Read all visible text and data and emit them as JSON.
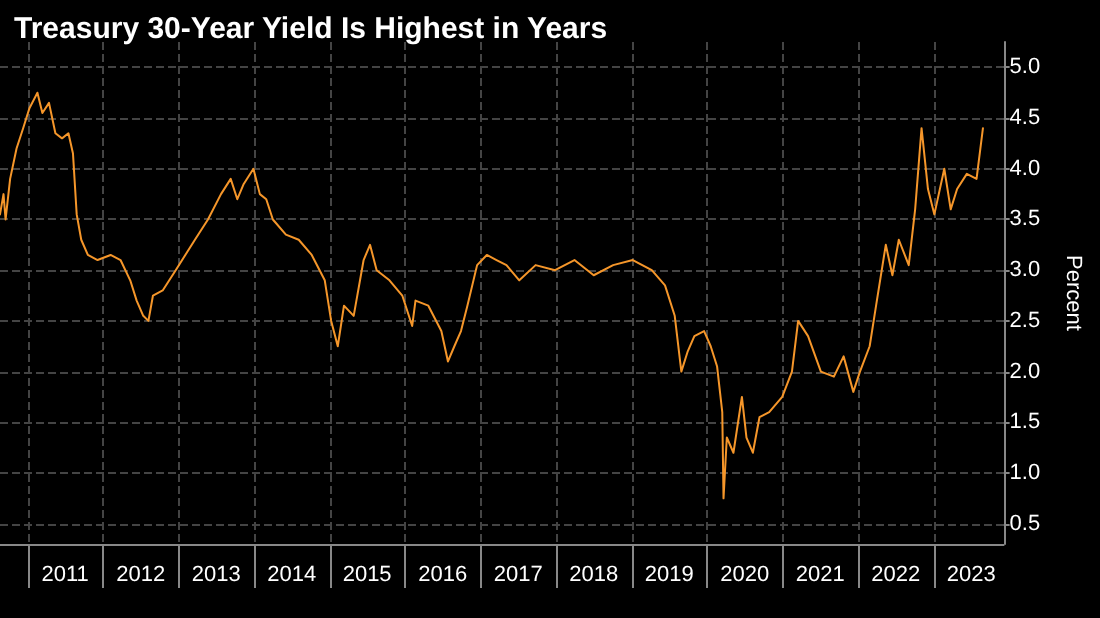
{
  "chart_data": {
    "type": "line",
    "title": "Treasury 30-Year Yield Is Highest in Years",
    "ylabel": "Percent",
    "xlim": [
      "2010-08-20",
      "2023-12-05"
    ],
    "ylim": [
      0.3,
      5.25
    ],
    "xticks": [
      {
        "value": "2011-01-01",
        "label": null
      },
      {
        "value": "2011-07-01",
        "label": "2011"
      },
      {
        "value": "2012-01-01",
        "label": null
      },
      {
        "value": "2012-07-01",
        "label": "2012"
      },
      {
        "value": "2013-01-01",
        "label": null
      },
      {
        "value": "2013-07-01",
        "label": "2013"
      },
      {
        "value": "2014-01-01",
        "label": null
      },
      {
        "value": "2014-07-01",
        "label": "2014"
      },
      {
        "value": "2015-01-01",
        "label": null
      },
      {
        "value": "2015-07-01",
        "label": "2015"
      },
      {
        "value": "2016-01-01",
        "label": null
      },
      {
        "value": "2016-07-01",
        "label": "2016"
      },
      {
        "value": "2017-01-01",
        "label": null
      },
      {
        "value": "2017-07-01",
        "label": "2017"
      },
      {
        "value": "2018-01-01",
        "label": null
      },
      {
        "value": "2018-07-01",
        "label": "2018"
      },
      {
        "value": "2019-01-01",
        "label": null
      },
      {
        "value": "2019-07-01",
        "label": "2019"
      },
      {
        "value": "2020-01-01",
        "label": null
      },
      {
        "value": "2020-07-01",
        "label": "2020"
      },
      {
        "value": "2021-01-01",
        "label": null
      },
      {
        "value": "2021-07-01",
        "label": "2021"
      },
      {
        "value": "2022-01-01",
        "label": null
      },
      {
        "value": "2022-07-01",
        "label": "2022"
      },
      {
        "value": "2023-01-01",
        "label": null
      },
      {
        "value": "2023-07-01",
        "label": "2023"
      }
    ],
    "yticks": [
      {
        "value": 0.5,
        "label": "0.5"
      },
      {
        "value": 1,
        "label": "1.0"
      },
      {
        "value": 1.5,
        "label": "1.5"
      },
      {
        "value": 2,
        "label": "2.0"
      },
      {
        "value": 2.5,
        "label": "2.5"
      },
      {
        "value": 3,
        "label": "3.0"
      },
      {
        "value": 3.5,
        "label": "3.5"
      },
      {
        "value": 4,
        "label": "4.0"
      },
      {
        "value": 4.5,
        "label": "4.5"
      },
      {
        "value": 5,
        "label": "5.0"
      }
    ],
    "grid": true,
    "marker": "none",
    "line_style": "solid",
    "series": [
      {
        "color": "#f5962a",
        "x": [
          "2010-08-20",
          "2010-09-06",
          "2010-09-16",
          "2010-10-08",
          "2010-11-08",
          "2010-12-10",
          "2011-01-10",
          "2011-02-17",
          "2011-03-13",
          "2011-04-14",
          "2011-05-15",
          "2011-06-16",
          "2011-07-17",
          "2011-08-08",
          "2011-08-26",
          "2011-09-17",
          "2011-10-19",
          "2011-12-05",
          "2012-02-06",
          "2012-03-25",
          "2012-05-11",
          "2012-06-11",
          "2012-07-13",
          "2012-08-07",
          "2012-08-29",
          "2012-10-15",
          "2012-12-17",
          "2013-03-20",
          "2013-05-22",
          "2013-07-24",
          "2013-09-09",
          "2013-10-11",
          "2013-11-11",
          "2013-12-28",
          "2014-01-28",
          "2014-02-28",
          "2014-04-01",
          "2014-06-03",
          "2014-08-04",
          "2014-10-06",
          "2014-12-08",
          "2015-01-08",
          "2015-02-09",
          "2015-03-11",
          "2015-04-27",
          "2015-06-14",
          "2015-07-15",
          "2015-08-16",
          "2015-10-17",
          "2015-12-18",
          "2016-02-04",
          "2016-02-20",
          "2016-04-22",
          "2016-06-24",
          "2016-07-26",
          "2016-08-26",
          "2016-09-27",
          "2016-10-28",
          "2016-12-14",
          "2017-01-30",
          "2017-03-18",
          "2017-05-05",
          "2017-07-06",
          "2017-09-23",
          "2017-12-26",
          "2018-03-30",
          "2018-07-01",
          "2018-10-03",
          "2019-01-06",
          "2019-04-08",
          "2019-06-11",
          "2019-07-28",
          "2019-08-29",
          "2019-09-29",
          "2019-10-31",
          "2019-12-17",
          "2020-01-18",
          "2020-02-18",
          "2020-03-14",
          "2020-03-20",
          "2020-04-05",
          "2020-05-07",
          "2020-06-17",
          "2020-07-09",
          "2020-08-09",
          "2020-09-10",
          "2020-10-27",
          "2020-12-29",
          "2021-02-14",
          "2021-03-16",
          "2021-05-03",
          "2021-07-04",
          "2021-09-05",
          "2021-10-22",
          "2021-12-08",
          "2022-01-09",
          "2022-02-25",
          "2022-03-28",
          "2022-05-14",
          "2022-06-15",
          "2022-07-16",
          "2022-09-02",
          "2022-10-03",
          "2022-11-03",
          "2022-12-04",
          "2023-01-04",
          "2023-02-21",
          "2023-03-24",
          "2023-04-24",
          "2023-06-10",
          "2023-07-27",
          "2023-08-27"
        ],
        "values": [
          3.55,
          3.75,
          3.5,
          3.9,
          4.2,
          4.4,
          4.6,
          4.75,
          4.55,
          4.65,
          4.35,
          4.3,
          4.35,
          4.15,
          3.55,
          3.3,
          3.15,
          3.1,
          3.15,
          3.1,
          2.9,
          2.7,
          2.55,
          2.5,
          2.75,
          2.8,
          3.0,
          3.3,
          3.5,
          3.75,
          3.9,
          3.7,
          3.85,
          4.0,
          3.75,
          3.7,
          3.5,
          3.35,
          3.3,
          3.15,
          2.9,
          2.5,
          2.25,
          2.65,
          2.55,
          3.1,
          3.25,
          3.0,
          2.9,
          2.75,
          2.45,
          2.7,
          2.65,
          2.4,
          2.1,
          2.25,
          2.4,
          2.65,
          3.05,
          3.15,
          3.1,
          3.05,
          2.9,
          3.05,
          3.0,
          3.1,
          2.95,
          3.05,
          3.1,
          3.0,
          2.85,
          2.55,
          2.0,
          2.2,
          2.35,
          2.4,
          2.25,
          2.05,
          1.6,
          0.75,
          1.35,
          1.2,
          1.75,
          1.35,
          1.2,
          1.55,
          1.6,
          1.75,
          2.0,
          2.5,
          2.35,
          2.0,
          1.95,
          2.15,
          1.8,
          2.0,
          2.25,
          2.65,
          3.25,
          2.95,
          3.3,
          3.05,
          3.6,
          4.4,
          3.8,
          3.55,
          4.0,
          3.6,
          3.8,
          3.95,
          3.9,
          4.4
        ]
      }
    ]
  }
}
